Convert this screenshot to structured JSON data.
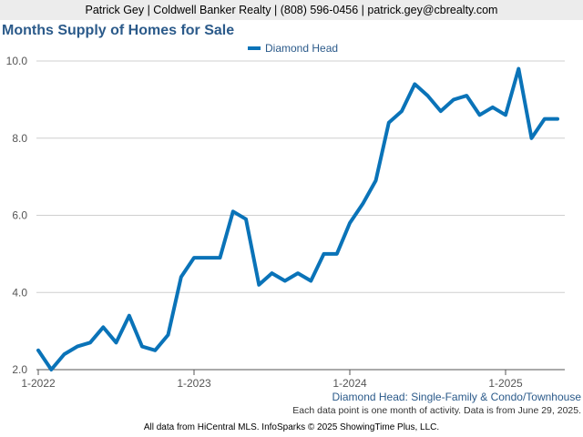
{
  "header": {
    "contact": "Patrick Gey | Coldwell Banker Realty | (808) 596-0456 | patrick.gey@cbrealty.com"
  },
  "chart_data": {
    "type": "line",
    "title": "Months Supply of Homes for Sale",
    "subtitle": "Diamond Head: Single-Family & Condo/Townhouse",
    "note": "Each data point is one month of activity. Data is from June 29, 2025.",
    "footer": "All data from HiCentral MLS. InfoSparks © 2025 ShowingTime Plus, LLC.",
    "legend_position": "top-center",
    "grid": true,
    "ylim": [
      2.0,
      10.0
    ],
    "y_ticks": [
      "2.0",
      "4.0",
      "6.0",
      "8.0",
      "10.0"
    ],
    "x_ticks": [
      "1-2022",
      "1-2023",
      "1-2024",
      "1-2025"
    ],
    "series": [
      {
        "name": "Diamond Head",
        "color": "#0a73b8",
        "x": [
          "2022-01",
          "2022-02",
          "2022-03",
          "2022-04",
          "2022-05",
          "2022-06",
          "2022-07",
          "2022-08",
          "2022-09",
          "2022-10",
          "2022-11",
          "2022-12",
          "2023-01",
          "2023-02",
          "2023-03",
          "2023-04",
          "2023-05",
          "2023-06",
          "2023-07",
          "2023-08",
          "2023-09",
          "2023-10",
          "2023-11",
          "2023-12",
          "2024-01",
          "2024-02",
          "2024-03",
          "2024-04",
          "2024-05",
          "2024-06",
          "2024-07",
          "2024-08",
          "2024-09",
          "2024-10",
          "2024-11",
          "2024-12",
          "2025-01",
          "2025-02",
          "2025-03",
          "2025-04",
          "2025-05"
        ],
        "values": [
          2.5,
          2.0,
          2.4,
          2.6,
          2.7,
          3.1,
          2.7,
          3.4,
          2.6,
          2.5,
          2.9,
          4.4,
          4.9,
          4.9,
          4.9,
          6.1,
          5.9,
          4.2,
          4.5,
          4.3,
          4.5,
          4.3,
          5.0,
          5.0,
          5.8,
          6.3,
          6.9,
          8.4,
          8.7,
          9.4,
          9.1,
          8.7,
          9.0,
          9.1,
          8.6,
          8.8,
          8.6,
          9.8,
          8.0,
          8.5,
          8.5
        ]
      }
    ]
  }
}
